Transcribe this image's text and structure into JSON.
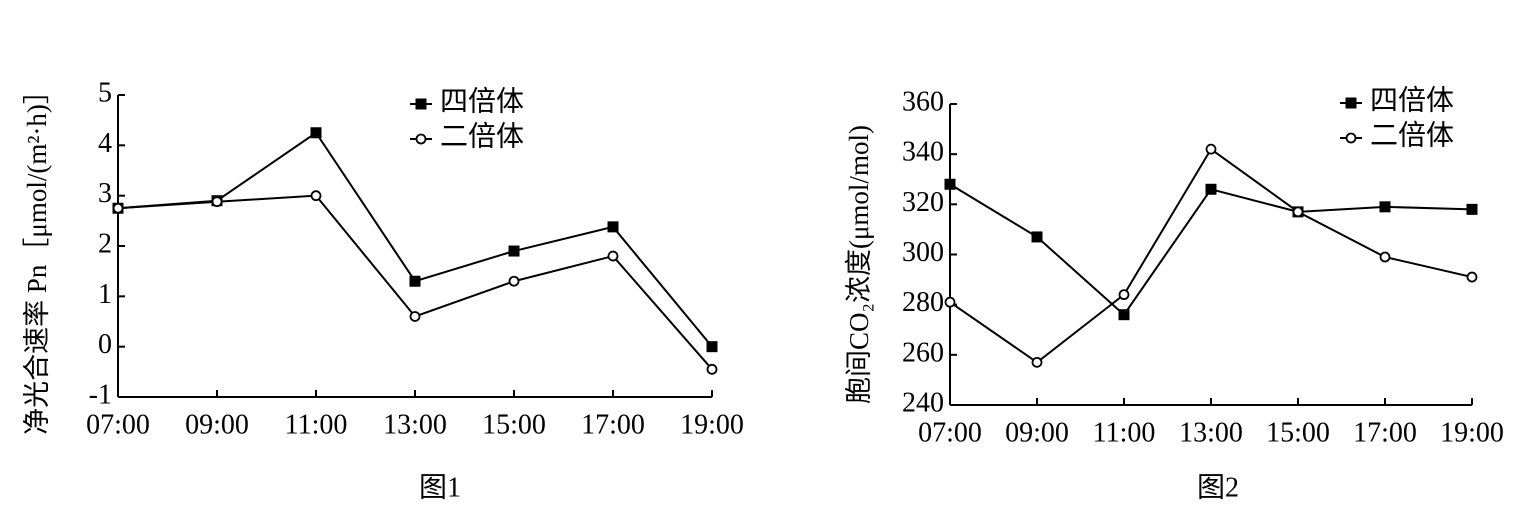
{
  "chart_data": [
    {
      "type": "line",
      "caption": "图1",
      "y_label": "净光合速率 Pn［μmol/(m²·h)］",
      "categories": [
        "07:00",
        "09:00",
        "11:00",
        "13:00",
        "15:00",
        "17:00",
        "19:00"
      ],
      "ylim": [
        -1,
        5
      ],
      "yticks": [
        -1,
        0,
        1,
        2,
        3,
        4,
        5
      ],
      "series": [
        {
          "name": "四倍体",
          "color": "#000000",
          "marker": "square",
          "values": [
            2.75,
            2.9,
            4.25,
            1.3,
            1.9,
            2.38,
            0
          ]
        },
        {
          "name": "二倍体",
          "color": "#000000",
          "marker": "open-circle",
          "values": [
            2.75,
            2.88,
            3.0,
            0.6,
            1.3,
            1.8,
            -0.45
          ]
        }
      ]
    },
    {
      "type": "line",
      "caption": "图2",
      "y_label": "胞间CO₂浓度(μmol/mol)",
      "categories": [
        "07:00",
        "09:00",
        "11:00",
        "13:00",
        "15:00",
        "17:00",
        "19:00"
      ],
      "ylim": [
        240,
        360
      ],
      "yticks": [
        240,
        260,
        280,
        300,
        320,
        340,
        360
      ],
      "series": [
        {
          "name": "四倍体",
          "color": "#000000",
          "marker": "square",
          "values": [
            328,
            307,
            276,
            326,
            317,
            319,
            318
          ]
        },
        {
          "name": "二倍体",
          "color": "#000000",
          "marker": "open-circle",
          "values": [
            281,
            257,
            284,
            342,
            317,
            299,
            291
          ]
        }
      ]
    }
  ]
}
